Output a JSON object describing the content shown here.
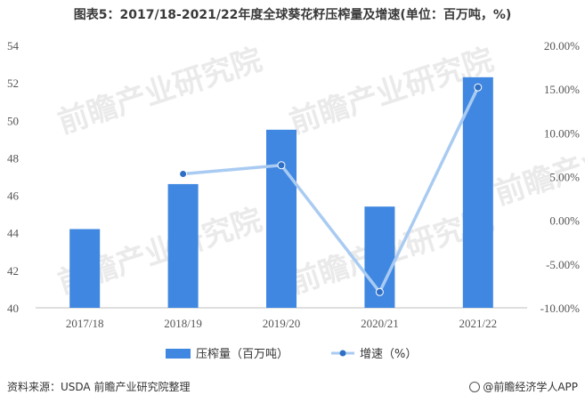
{
  "title": "图表5：2017/18-2021/22年度全球葵花籽压榨量及增速(单位：百万吨，%)",
  "source": "资料来源：USDA 前瞻产业研究院整理",
  "brand": "@前瞻经济学人APP",
  "watermark": "前瞻产业研究院",
  "colors": {
    "bar": "#3f87e0",
    "line": "#a9cbf2",
    "marker": "#2f6fc4"
  },
  "chart_data": {
    "type": "bar",
    "categories": [
      "2017/18",
      "2018/19",
      "2019/20",
      "2020/21",
      "2021/22"
    ],
    "series": [
      {
        "name": "压榨量（百万吨）",
        "type": "bar",
        "axis": "left",
        "values": [
          44.2,
          46.6,
          49.5,
          45.4,
          52.3
        ]
      },
      {
        "name": "增速（%）",
        "type": "line",
        "axis": "right",
        "values": [
          null,
          5.3,
          6.3,
          -8.2,
          15.2
        ]
      }
    ],
    "y_left": {
      "min": 40,
      "max": 54,
      "ticks": [
        "40",
        "42",
        "44",
        "46",
        "48",
        "50",
        "52",
        "54"
      ]
    },
    "y_right": {
      "min": -10,
      "max": 20,
      "ticks": [
        "-10.00%",
        "-5.00%",
        "0.00%",
        "5.00%",
        "10.00%",
        "15.00%",
        "20.00%"
      ]
    },
    "legend_position": "bottom",
    "grid": false
  }
}
